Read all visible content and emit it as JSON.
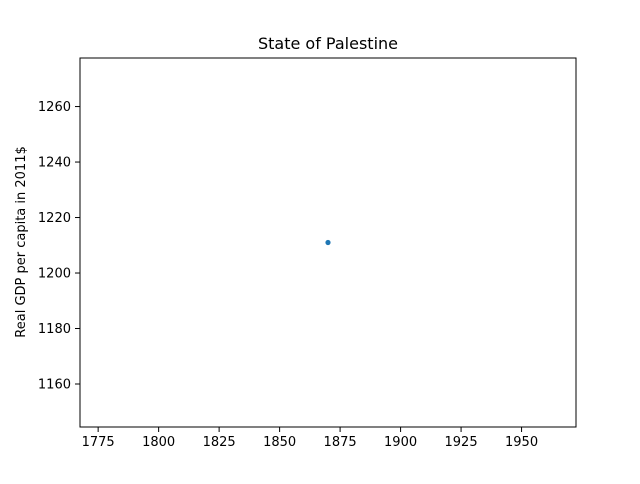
{
  "chart_data": {
    "type": "scatter",
    "title": "State of Palestine",
    "xlabel": "",
    "ylabel": "Real GDP per capita in 2011$",
    "xlim": [
      1767.5,
      1972.5
    ],
    "ylim": [
      1144.5,
      1277.5
    ],
    "xticks": [
      1775,
      1800,
      1825,
      1850,
      1875,
      1900,
      1925,
      1950
    ],
    "yticks": [
      1160,
      1180,
      1200,
      1220,
      1240,
      1260
    ],
    "grid": false,
    "legend": "none",
    "points": [
      {
        "x": 1870,
        "y": 1211
      }
    ],
    "colors": {
      "marker": "#1f77b4",
      "axis": "#000000"
    }
  }
}
